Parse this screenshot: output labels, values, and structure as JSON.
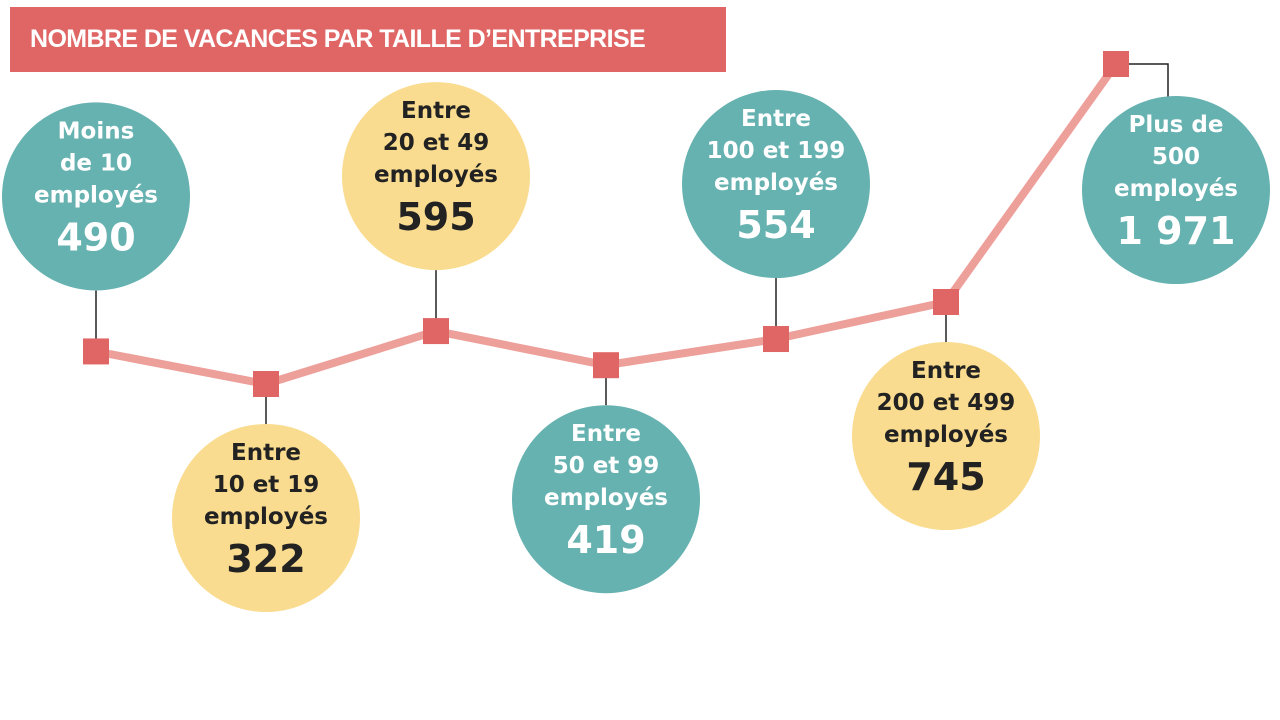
{
  "chart_data": {
    "type": "line",
    "title": "NOMBRE DE VACANCES PAR TAILLE D’ENTREPRISE",
    "colors": {
      "title_bg": "#e06666",
      "line": "#ed9f9a",
      "marker": "#e06666",
      "bubble_teal": "#66b2b0",
      "bubble_yellow": "#f9dc8f",
      "text_on_teal": "#ffffff",
      "text_on_yellow": "#222222"
    },
    "points": [
      {
        "category": [
          "Moins",
          "de 10",
          "employés"
        ],
        "value": 490,
        "value_label": "490",
        "bubble": "teal",
        "label_side": "above"
      },
      {
        "category": [
          "Entre",
          "10 et 19",
          "employés"
        ],
        "value": 322,
        "value_label": "322",
        "bubble": "yellow",
        "label_side": "below"
      },
      {
        "category": [
          "Entre",
          "20 et 49",
          "employés"
        ],
        "value": 595,
        "value_label": "595",
        "bubble": "yellow",
        "label_side": "above"
      },
      {
        "category": [
          "Entre",
          "50 et 99",
          "employés"
        ],
        "value": 419,
        "value_label": "419",
        "bubble": "teal",
        "label_side": "below"
      },
      {
        "category": [
          "Entre",
          "100 et 199",
          "employés"
        ],
        "value": 554,
        "value_label": "554",
        "bubble": "teal",
        "label_side": "above"
      },
      {
        "category": [
          "Entre",
          "200 et 499",
          "employés"
        ],
        "value": 745,
        "value_label": "745",
        "bubble": "yellow",
        "label_side": "below"
      },
      {
        "category": [
          "Plus de",
          "500",
          "employés"
        ],
        "value": 1971,
        "value_label": "1 971",
        "bubble": "teal",
        "label_side": "right"
      }
    ]
  }
}
